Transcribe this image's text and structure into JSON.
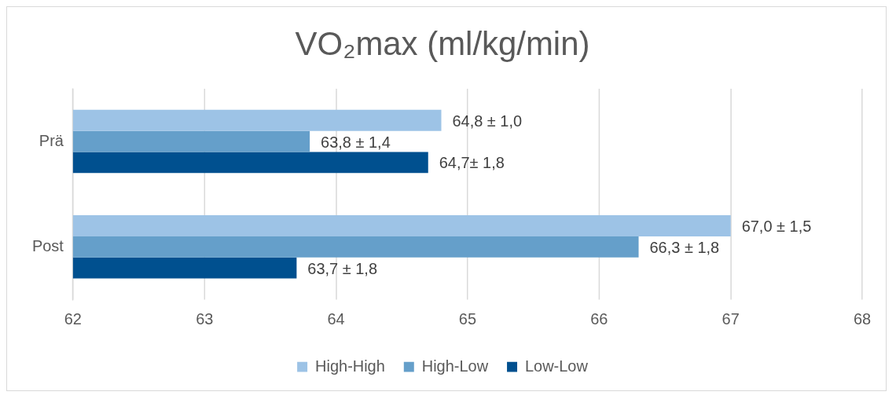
{
  "chart_data": {
    "type": "bar",
    "orientation": "horizontal",
    "title": "VO₂max (ml/kg/min)",
    "categories": [
      "Prä",
      "Post"
    ],
    "series": [
      {
        "name": "High-High",
        "color": "#9dc3e6",
        "values": [
          64.8,
          67.0
        ],
        "value_labels": [
          "64,8 ± 1,0",
          "67,0 ± 1,5"
        ]
      },
      {
        "name": "High-Low",
        "color": "#659fca",
        "values": [
          63.8,
          66.3
        ],
        "value_labels": [
          "63,8 ± 1,4",
          "66,3 ± 1,8"
        ]
      },
      {
        "name": "Low-Low",
        "color": "#00508f",
        "values": [
          64.7,
          63.7
        ],
        "value_labels": [
          "64,7± 1,8",
          "63,7 ± 1,8"
        ]
      }
    ],
    "xlim": [
      62,
      68
    ],
    "xticks": [
      62,
      63,
      64,
      65,
      66,
      67,
      68
    ],
    "grid": "x",
    "legend": "bottom"
  }
}
